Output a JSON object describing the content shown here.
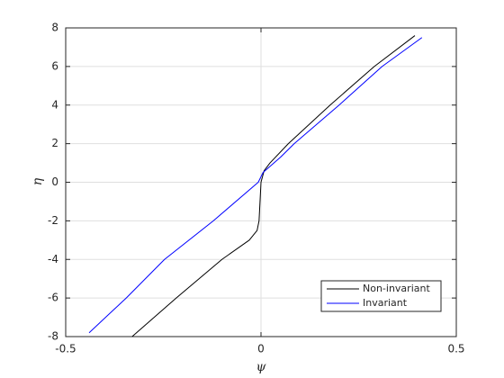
{
  "chart_data": {
    "type": "line",
    "xlabel": "ψ",
    "ylabel": "η",
    "xlim": [
      -0.5,
      0.5
    ],
    "xticks": [
      -0.5,
      0,
      0.5
    ],
    "ylim": [
      -8,
      8
    ],
    "yticks": [
      -8,
      -6,
      -4,
      -2,
      0,
      2,
      4,
      6,
      8
    ],
    "grid": true,
    "legend": "lower right",
    "series": [
      {
        "name": "Non-invariant",
        "color": "#000000",
        "x": [
          -0.33,
          -0.217,
          -0.1,
          -0.03,
          -0.01,
          -0.005,
          0.0,
          0.008,
          0.023,
          0.07,
          0.177,
          0.29,
          0.394
        ],
        "values": [
          -8,
          -6,
          -4,
          -3,
          -2.5,
          -2,
          0,
          0.6,
          1,
          2,
          4,
          6,
          7.6
        ]
      },
      {
        "name": "Invariant",
        "color": "#0000ff",
        "x": [
          -0.44,
          -0.345,
          -0.247,
          -0.122,
          -0.007,
          0.005,
          0.05,
          0.085,
          0.2,
          0.31,
          0.412
        ],
        "values": [
          -7.8,
          -6,
          -4,
          -2,
          0,
          0.5,
          1.3,
          2,
          4,
          6,
          7.5
        ]
      }
    ]
  }
}
